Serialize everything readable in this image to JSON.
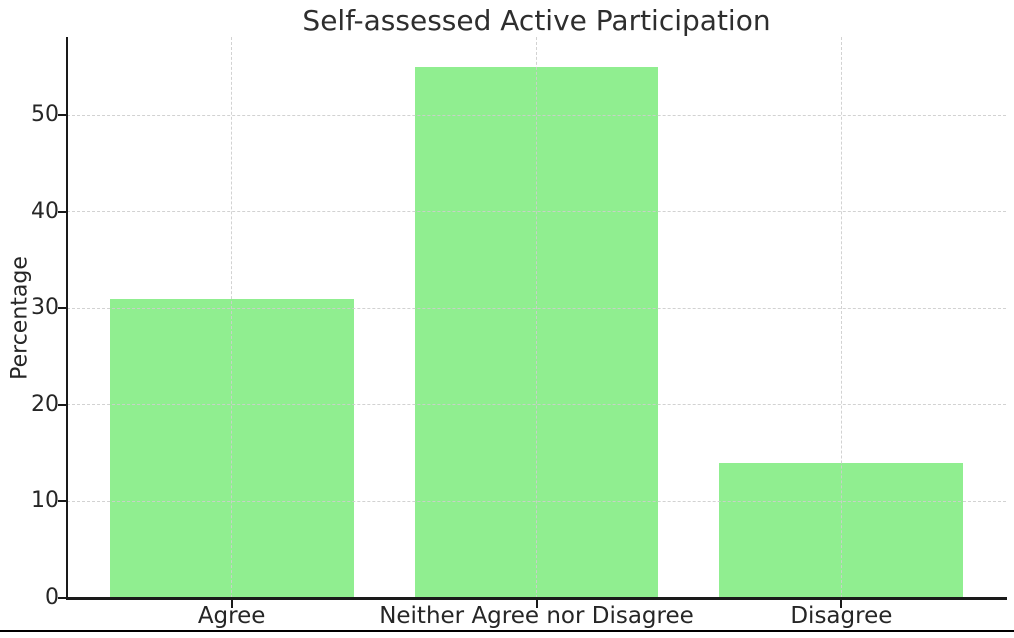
{
  "figure": {
    "background": "#ffffff",
    "bottom_rule_color": "#000000"
  },
  "chart_data": {
    "type": "bar",
    "title": "Self-assessed Active Participation",
    "categories": [
      "Agree",
      "Neither Agree nor Disagree",
      "Disagree"
    ],
    "values": [
      31,
      55,
      14
    ],
    "xlabel": "",
    "ylabel": "Percentage",
    "ylim": [
      0,
      58.1
    ],
    "yticks": [
      0,
      10,
      20,
      30,
      40,
      50
    ],
    "bar_color": "#90EE90",
    "grid": {
      "style": "dashed",
      "color": "#cdcdcd",
      "drawn_over_bars": true,
      "horizontal": true,
      "vertical": true
    },
    "legend": "none"
  },
  "colors": {
    "bar": "#90EE90",
    "grid": "#cdcdcd",
    "spine": "#1a1a1a",
    "text": "#262626"
  }
}
